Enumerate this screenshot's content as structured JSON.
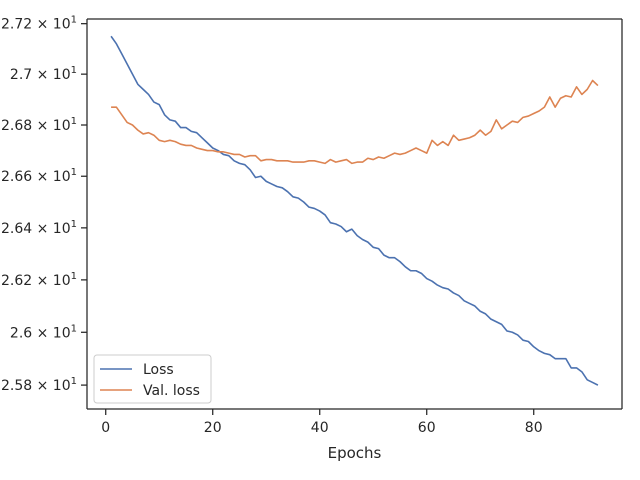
{
  "chart_data": {
    "type": "line",
    "title": "",
    "xlabel": "Epochs",
    "ylabel": "",
    "yscale": "log",
    "xlim": [
      -3.5,
      96.5
    ],
    "ylim": [
      25.71,
      27.2186
    ],
    "grid": false,
    "legend_position": "lower-left",
    "x_ticks": [
      0,
      20,
      40,
      60,
      80
    ],
    "y_ticks": [
      25.8,
      26.0,
      26.2,
      26.4,
      26.6,
      26.8,
      27.0,
      27.2
    ],
    "y_tick_labels": [
      {
        "base": "2.58",
        "exp": "1"
      },
      {
        "base": "2.6",
        "exp": "1"
      },
      {
        "base": "2.62",
        "exp": "1"
      },
      {
        "base": "2.64",
        "exp": "1"
      },
      {
        "base": "2.66",
        "exp": "1"
      },
      {
        "base": "2.68",
        "exp": "1"
      },
      {
        "base": "2.7",
        "exp": "1"
      },
      {
        "base": "2.72",
        "exp": "1"
      }
    ],
    "x": [
      1,
      2,
      3,
      4,
      5,
      6,
      7,
      8,
      9,
      10,
      11,
      12,
      13,
      14,
      15,
      16,
      17,
      18,
      19,
      20,
      21,
      22,
      23,
      24,
      25,
      26,
      27,
      28,
      29,
      30,
      31,
      32,
      33,
      34,
      35,
      36,
      37,
      38,
      39,
      40,
      41,
      42,
      43,
      44,
      45,
      46,
      47,
      48,
      49,
      50,
      51,
      52,
      53,
      54,
      55,
      56,
      57,
      58,
      59,
      60,
      61,
      62,
      63,
      64,
      65,
      66,
      67,
      68,
      69,
      70,
      71,
      72,
      73,
      74,
      75,
      76,
      77,
      78,
      79,
      80,
      81,
      82,
      83,
      84,
      85,
      86,
      87,
      88,
      89,
      90,
      91,
      92
    ],
    "series": [
      {
        "name": "Loss",
        "color": "#4c72b0",
        "values": [
          27.15,
          27.12,
          27.08,
          27.04,
          27.0,
          26.96,
          26.94,
          26.92,
          26.89,
          26.88,
          26.84,
          26.82,
          26.815,
          26.79,
          26.79,
          26.775,
          26.77,
          26.75,
          26.73,
          26.71,
          26.7,
          26.685,
          26.68,
          26.66,
          26.65,
          26.645,
          26.625,
          26.595,
          26.6,
          26.58,
          26.57,
          26.56,
          26.555,
          26.54,
          26.52,
          26.515,
          26.5,
          26.48,
          26.475,
          26.465,
          26.45,
          26.42,
          26.415,
          26.405,
          26.385,
          26.395,
          26.37,
          26.355,
          26.345,
          26.325,
          26.32,
          26.295,
          26.285,
          26.285,
          26.27,
          26.25,
          26.235,
          26.235,
          26.225,
          26.205,
          26.195,
          26.18,
          26.17,
          26.165,
          26.15,
          26.14,
          26.12,
          26.11,
          26.1,
          26.08,
          26.07,
          26.05,
          26.04,
          26.03,
          26.005,
          26.0,
          25.99,
          25.97,
          25.965,
          25.945,
          25.93,
          25.92,
          25.915,
          25.9,
          25.9,
          25.9,
          25.865,
          25.865,
          25.85,
          25.82,
          25.81,
          25.8
        ]
      },
      {
        "name": "Val. loss",
        "color": "#dd8452",
        "values": [
          26.87,
          26.87,
          26.84,
          26.81,
          26.8,
          26.78,
          26.765,
          26.77,
          26.76,
          26.74,
          26.735,
          26.74,
          26.735,
          26.725,
          26.72,
          26.72,
          26.71,
          26.705,
          26.7,
          26.7,
          26.695,
          26.695,
          26.69,
          26.685,
          26.685,
          26.675,
          26.68,
          26.68,
          26.66,
          26.665,
          26.665,
          26.66,
          26.66,
          26.66,
          26.655,
          26.655,
          26.655,
          26.66,
          26.66,
          26.655,
          26.65,
          26.665,
          26.655,
          26.66,
          26.665,
          26.65,
          26.655,
          26.655,
          26.67,
          26.665,
          26.675,
          26.67,
          26.68,
          26.69,
          26.685,
          26.69,
          26.7,
          26.71,
          26.7,
          26.69,
          26.74,
          26.72,
          26.735,
          26.72,
          26.76,
          26.74,
          26.745,
          26.75,
          26.76,
          26.78,
          26.76,
          26.775,
          26.82,
          26.785,
          26.8,
          26.815,
          26.81,
          26.83,
          26.835,
          26.845,
          26.855,
          26.87,
          26.91,
          26.87,
          26.905,
          26.915,
          26.91,
          26.95,
          26.92,
          26.94,
          26.975,
          26.955
        ]
      }
    ]
  }
}
